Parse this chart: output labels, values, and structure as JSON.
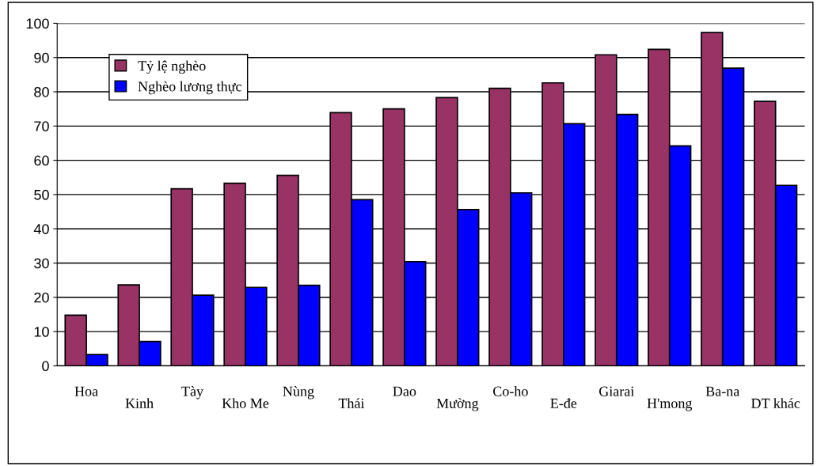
{
  "chart_data": {
    "type": "bar",
    "categories": [
      "Hoa",
      "Kinh",
      "Tày",
      "Kho Me",
      "Nùng",
      "Thái",
      "Dao",
      "Mường",
      "Co-ho",
      "E-đe",
      "Giarai",
      "H'mong",
      "Ba-na",
      "DT khác"
    ],
    "series": [
      {
        "name": "Tỷ lệ nghèo",
        "color": "#993366",
        "values": [
          14.8,
          23.6,
          51.7,
          53.3,
          55.6,
          73.9,
          75.0,
          78.3,
          81.0,
          82.6,
          90.8,
          92.4,
          97.3,
          77.2
        ]
      },
      {
        "name": "Nghèo lương thực",
        "color": "#0000ff",
        "values": [
          3.3,
          7.1,
          20.6,
          22.9,
          23.5,
          48.5,
          30.4,
          45.6,
          50.5,
          70.7,
          73.4,
          64.2,
          86.9,
          52.7
        ]
      }
    ],
    "ylim": [
      0,
      100
    ],
    "yticks": [
      0,
      10,
      20,
      30,
      40,
      50,
      60,
      70,
      80,
      90,
      100
    ],
    "grid": "y",
    "legend": "top left"
  }
}
